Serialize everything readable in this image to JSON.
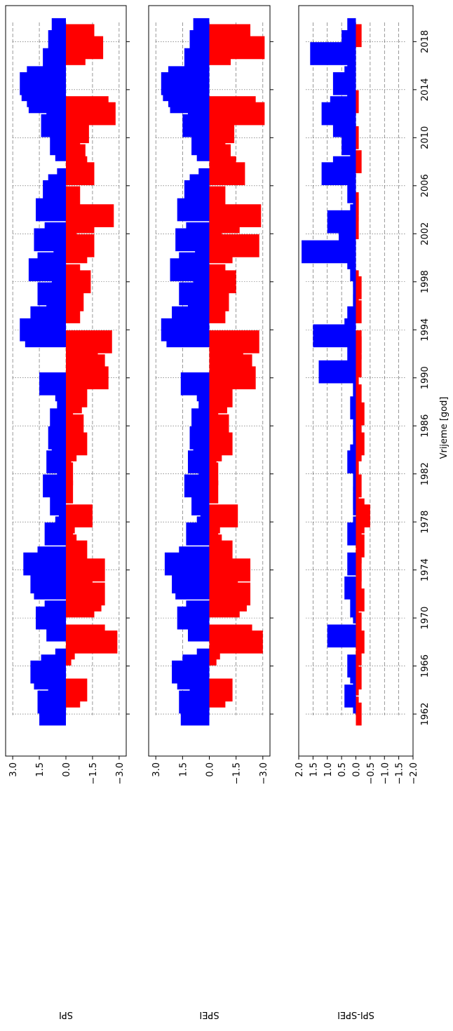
{
  "figure": {
    "xlabel": "Vrijeme [god]",
    "orientation": "rotated-90"
  },
  "colors": {
    "positive": "#0000ff",
    "negative": "#ff0000",
    "grid": "#555555",
    "frame": "#000000"
  },
  "chart_data": [
    {
      "type": "bar",
      "name": "SPI",
      "ylabel": "SPI",
      "ylim": [
        3.4,
        -3.4
      ],
      "yticks": [
        3.0,
        1.5,
        0.0,
        -1.5,
        -3.0
      ],
      "yticklabels": [
        "3.0",
        "1.5",
        "0.0",
        "−1.5",
        "−3.0"
      ],
      "xlim": [
        1958.5,
        2021.0
      ],
      "xticks": [
        1962,
        1966,
        1970,
        1974,
        1978,
        1982,
        1986,
        1990,
        1994,
        1998,
        2002,
        2006,
        2010,
        2014,
        2018
      ],
      "grid": true,
      "x": [
        1962.0,
        1962.5,
        1963.0,
        1963.5,
        1964.0,
        1964.5,
        1965.0,
        1965.5,
        1966.0,
        1966.5,
        1967.0,
        1967.5,
        1968.0,
        1968.5,
        1969.0,
        1969.5,
        1970.0,
        1970.5,
        1971.0,
        1971.5,
        1972.0,
        1972.5,
        1973.0,
        1973.5,
        1974.0,
        1974.5,
        1975.0,
        1975.5,
        1976.0,
        1976.5,
        1977.0,
        1977.5,
        1978.0,
        1978.5,
        1979.0,
        1979.5,
        1980.0,
        1980.5,
        1981.0,
        1981.5,
        1982.0,
        1982.5,
        1983.0,
        1983.5,
        1984.0,
        1984.5,
        1985.0,
        1985.5,
        1986.0,
        1986.5,
        1987.0,
        1987.5,
        1988.0,
        1988.5,
        1989.0,
        1989.5,
        1990.0,
        1990.5,
        1991.0,
        1991.5,
        1992.0,
        1992.5,
        1993.0,
        1993.5,
        1994.0,
        1994.5,
        1995.0,
        1995.5,
        1996.0,
        1996.5,
        1997.0,
        1997.5,
        1998.0,
        1998.5,
        1999.0,
        1999.5,
        2000.0,
        2000.5,
        2001.0,
        2001.5,
        2002.0,
        2002.5,
        2003.0,
        2003.5,
        2004.0,
        2004.5,
        2005.0,
        2005.5,
        2006.0,
        2006.5,
        2007.0,
        2007.5,
        2008.0,
        2008.5,
        2009.0,
        2009.5,
        2010.0,
        2010.5,
        2011.0,
        2011.5,
        2012.0,
        2012.5,
        2013.0,
        2013.5,
        2014.0,
        2014.5,
        2015.0,
        2015.5,
        2016.0,
        2016.5,
        2017.0,
        2017.5,
        2018.0,
        2018.5,
        2019.0
      ],
      "values": [
        1.5,
        1.2,
        1.6,
        -0.8,
        -1.2,
        1.0,
        1.8,
        2.0,
        1.4,
        0.6,
        -0.3,
        -0.5,
        -2.9,
        -2.2,
        1.1,
        0.8,
        1.7,
        1.2,
        -1.6,
        -2.0,
        -2.2,
        1.8,
        2.0,
        -1.5,
        -2.2,
        2.4,
        1.6,
        -1.2,
        -0.6,
        -0.4,
        1.2,
        0.6,
        -0.5,
        -1.5,
        0.4,
        0.9,
        0.6,
        -0.4,
        1.3,
        0.5,
        -0.4,
        -0.3,
        1.1,
        0.8,
        -0.6,
        -1.2,
        1.0,
        -0.8,
        -1.0,
        0.9,
        -0.4,
        0.5,
        -0.9,
        -1.2,
        0.6,
        1.5,
        -2.4,
        -2.1,
        -2.2,
        -1.6,
        -1.8,
        -1.5,
        -2.6,
        2.3,
        2.6,
        1.8,
        2.0,
        -0.8,
        1.1,
        -1.0,
        1.6,
        0.8,
        -1.4,
        -0.8,
        2.1,
        1.6,
        0.7,
        -1.2,
        -1.6,
        1.8,
        1.2,
        -0.6,
        -1.6,
        -2.7,
        1.7,
        0.9,
        -0.8,
        1.3,
        1.0,
        0.5,
        -1.6,
        -1.2,
        -0.9,
        -1.1,
        0.6,
        0.9,
        -0.8,
        -1.3,
        1.4,
        1.1,
        -2.8,
        -2.4,
        2.1,
        2.2,
        2.5,
        2.6,
        2.2,
        1.2,
        0.8,
        1.3,
        -1.1,
        -2.1,
        1.0,
        -1.6,
        0.8
      ]
    },
    {
      "type": "bar",
      "name": "SPEI",
      "ylabel": "SPEI",
      "ylim": [
        3.4,
        -3.4
      ],
      "yticks": [
        3.0,
        1.5,
        0.0,
        -1.5,
        -3.0
      ],
      "yticklabels": [
        "3.0",
        "1.5",
        "0.0",
        "−1.5",
        "−3.0"
      ],
      "xlim": [
        1958.5,
        2021.0
      ],
      "xticks": [
        1962,
        1966,
        1970,
        1974,
        1978,
        1982,
        1986,
        1990,
        1994,
        1998,
        2002,
        2006,
        2010,
        2014,
        2018
      ],
      "grid": true,
      "x": [
        1962.0,
        1962.5,
        1963.0,
        1963.5,
        1964.0,
        1964.5,
        1965.0,
        1965.5,
        1966.0,
        1966.5,
        1967.0,
        1967.5,
        1968.0,
        1968.5,
        1969.0,
        1969.5,
        1970.0,
        1970.5,
        1971.0,
        1971.5,
        1972.0,
        1972.5,
        1973.0,
        1973.5,
        1974.0,
        1974.5,
        1975.0,
        1975.5,
        1976.0,
        1976.5,
        1977.0,
        1977.5,
        1978.0,
        1978.5,
        1979.0,
        1979.5,
        1980.0,
        1980.5,
        1981.0,
        1981.5,
        1982.0,
        1982.5,
        1983.0,
        1983.5,
        1984.0,
        1984.5,
        1985.0,
        1985.5,
        1986.0,
        1986.5,
        1987.0,
        1987.5,
        1988.0,
        1988.5,
        1989.0,
        1989.5,
        1990.0,
        1990.5,
        1991.0,
        1991.5,
        1992.0,
        1992.5,
        1993.0,
        1993.5,
        1994.0,
        1994.5,
        1995.0,
        1995.5,
        1996.0,
        1996.5,
        1997.0,
        1997.5,
        1998.0,
        1998.5,
        1999.0,
        1999.5,
        2000.0,
        2000.5,
        2001.0,
        2001.5,
        2002.0,
        2002.5,
        2003.0,
        2003.5,
        2004.0,
        2004.5,
        2005.0,
        2005.5,
        2006.0,
        2006.5,
        2007.0,
        2007.5,
        2008.0,
        2008.5,
        2009.0,
        2009.5,
        2010.0,
        2010.5,
        2011.0,
        2011.5,
        2012.0,
        2012.5,
        2013.0,
        2013.5,
        2014.0,
        2014.5,
        2015.0,
        2015.5,
        2016.0,
        2016.5,
        2017.0,
        2017.5,
        2018.0,
        2018.5,
        2019.0
      ],
      "values": [
        1.6,
        1.3,
        1.7,
        -0.9,
        -1.3,
        1.1,
        1.8,
        2.1,
        1.5,
        0.7,
        -0.4,
        -0.6,
        -3.0,
        -2.4,
        1.2,
        0.9,
        1.8,
        1.3,
        -1.7,
        -2.1,
        -2.3,
        1.9,
        2.1,
        -1.6,
        -2.3,
        2.5,
        1.7,
        -1.3,
        -0.7,
        -0.5,
        1.3,
        0.7,
        -0.6,
        -1.6,
        0.5,
        1.0,
        0.7,
        -0.5,
        1.4,
        0.6,
        -0.5,
        -0.4,
        1.2,
        0.9,
        -0.7,
        -1.3,
        1.1,
        -0.9,
        -1.1,
        1.0,
        -0.5,
        0.6,
        -1.0,
        -1.3,
        0.7,
        1.6,
        -2.6,
        -2.3,
        -2.4,
        -1.7,
        -1.9,
        -1.6,
        -2.8,
        2.4,
        2.7,
        1.9,
        2.1,
        -0.9,
        1.2,
        -1.1,
        1.7,
        0.9,
        -1.5,
        -0.9,
        2.2,
        1.7,
        0.8,
        -1.3,
        -2.8,
        1.9,
        1.3,
        -0.7,
        -1.7,
        -2.9,
        1.8,
        1.0,
        -0.9,
        1.4,
        1.1,
        0.6,
        -2.0,
        -1.5,
        -1.0,
        -1.2,
        0.7,
        1.0,
        -0.9,
        -1.4,
        1.5,
        1.2,
        -3.1,
        -2.6,
        2.2,
        2.3,
        2.6,
        2.7,
        2.3,
        1.3,
        0.9,
        1.4,
        -1.2,
        -3.1,
        1.1,
        -2.3,
        0.9
      ]
    },
    {
      "type": "bar",
      "name": "SPI-SPEI",
      "ylabel": "SPI-SPEI",
      "ylim": [
        2.0,
        -2.0
      ],
      "yticks": [
        2.0,
        1.5,
        1.0,
        0.5,
        0.0,
        -0.5,
        -1.0,
        -1.5,
        -2.0
      ],
      "yticklabels": [
        "2.0",
        "1.5",
        "1.0",
        "0.5",
        "0.0",
        "−0.5",
        "−1.0",
        "−1.5",
        "−2.0"
      ],
      "xlim": [
        1958.5,
        2021.0
      ],
      "xticks": [
        1962,
        1966,
        1970,
        1974,
        1978,
        1982,
        1986,
        1990,
        1994,
        1998,
        2002,
        2006,
        2010,
        2014,
        2018
      ],
      "grid": true,
      "x": [
        1962.0,
        1962.5,
        1963.0,
        1963.5,
        1964.0,
        1964.5,
        1965.0,
        1965.5,
        1966.0,
        1966.5,
        1967.0,
        1967.5,
        1968.0,
        1968.5,
        1969.0,
        1969.5,
        1970.0,
        1970.5,
        1971.0,
        1971.5,
        1972.0,
        1972.5,
        1973.0,
        1973.5,
        1974.0,
        1974.5,
        1975.0,
        1975.5,
        1976.0,
        1976.5,
        1977.0,
        1977.5,
        1978.0,
        1978.5,
        1979.0,
        1979.5,
        1980.0,
        1980.5,
        1981.0,
        1981.5,
        1982.0,
        1982.5,
        1983.0,
        1983.5,
        1984.0,
        1984.5,
        1985.0,
        1985.5,
        1986.0,
        1986.5,
        1987.0,
        1987.5,
        1988.0,
        1988.5,
        1989.0,
        1989.5,
        1990.0,
        1990.5,
        1991.0,
        1991.5,
        1992.0,
        1992.5,
        1993.0,
        1993.5,
        1994.0,
        1994.5,
        1995.0,
        1995.5,
        1996.0,
        1996.5,
        1997.0,
        1997.5,
        1998.0,
        1998.5,
        1999.0,
        1999.5,
        2000.0,
        2000.5,
        2001.0,
        2001.5,
        2002.0,
        2002.5,
        2003.0,
        2003.5,
        2004.0,
        2004.5,
        2005.0,
        2005.5,
        2006.0,
        2006.5,
        2007.0,
        2007.5,
        2008.0,
        2008.5,
        2009.0,
        2009.5,
        2010.0,
        2010.5,
        2011.0,
        2011.5,
        2012.0,
        2012.5,
        2013.0,
        2013.5,
        2014.0,
        2014.5,
        2015.0,
        2015.5,
        2016.0,
        2016.5,
        2017.0,
        2017.5,
        2018.0,
        2018.5,
        2019.0
      ],
      "values": [
        -0.2,
        -0.1,
        0.1,
        0.4,
        0.1,
        -0.1,
        -0.2,
        0.2,
        0.3,
        -0.1,
        -0.2,
        -0.1,
        -0.3,
        1.0,
        -0.1,
        -0.2,
        -0.1,
        0.1,
        0.2,
        -0.3,
        -0.1,
        0.4,
        -0.2,
        -0.1,
        -0.2,
        0.3,
        -0.1,
        -0.2,
        -0.3,
        -0.2,
        0.3,
        0.1,
        -0.3,
        -0.5,
        -0.3,
        0.1,
        0.1,
        -0.1,
        -0.2,
        0.1,
        -0.1,
        -0.1,
        0.3,
        0.2,
        -0.2,
        -0.3,
        0.1,
        -0.1,
        -0.2,
        0.1,
        -0.3,
        0.2,
        -0.1,
        -0.2,
        0.1,
        0.1,
        -0.1,
        1.3,
        -0.2,
        -0.1,
        0.3,
        -0.2,
        -0.2,
        1.5,
        0.4,
        0.2,
        0.3,
        -0.2,
        0.1,
        -0.1,
        0.1,
        -0.2,
        -0.1,
        0.1,
        0.2,
        0.1,
        0.3,
        1.9,
        0.5,
        0.2,
        0.6,
        -0.1,
        1.0,
        0.2,
        -0.1,
        -0.1,
        0.1,
        0.3,
        0.2,
        0.1,
        1.2,
        0.8,
        -0.2,
        0.1,
        0.2,
        0.5,
        -0.1,
        0.2,
        0.8,
        0.4,
        1.2,
        0.9,
        -0.1,
        0.3,
        0.3,
        0.8,
        0.4,
        0.2,
        0.3,
        0.2,
        1.6,
        0.3,
        0.5,
        -0.2,
        0.3
      ]
    }
  ]
}
